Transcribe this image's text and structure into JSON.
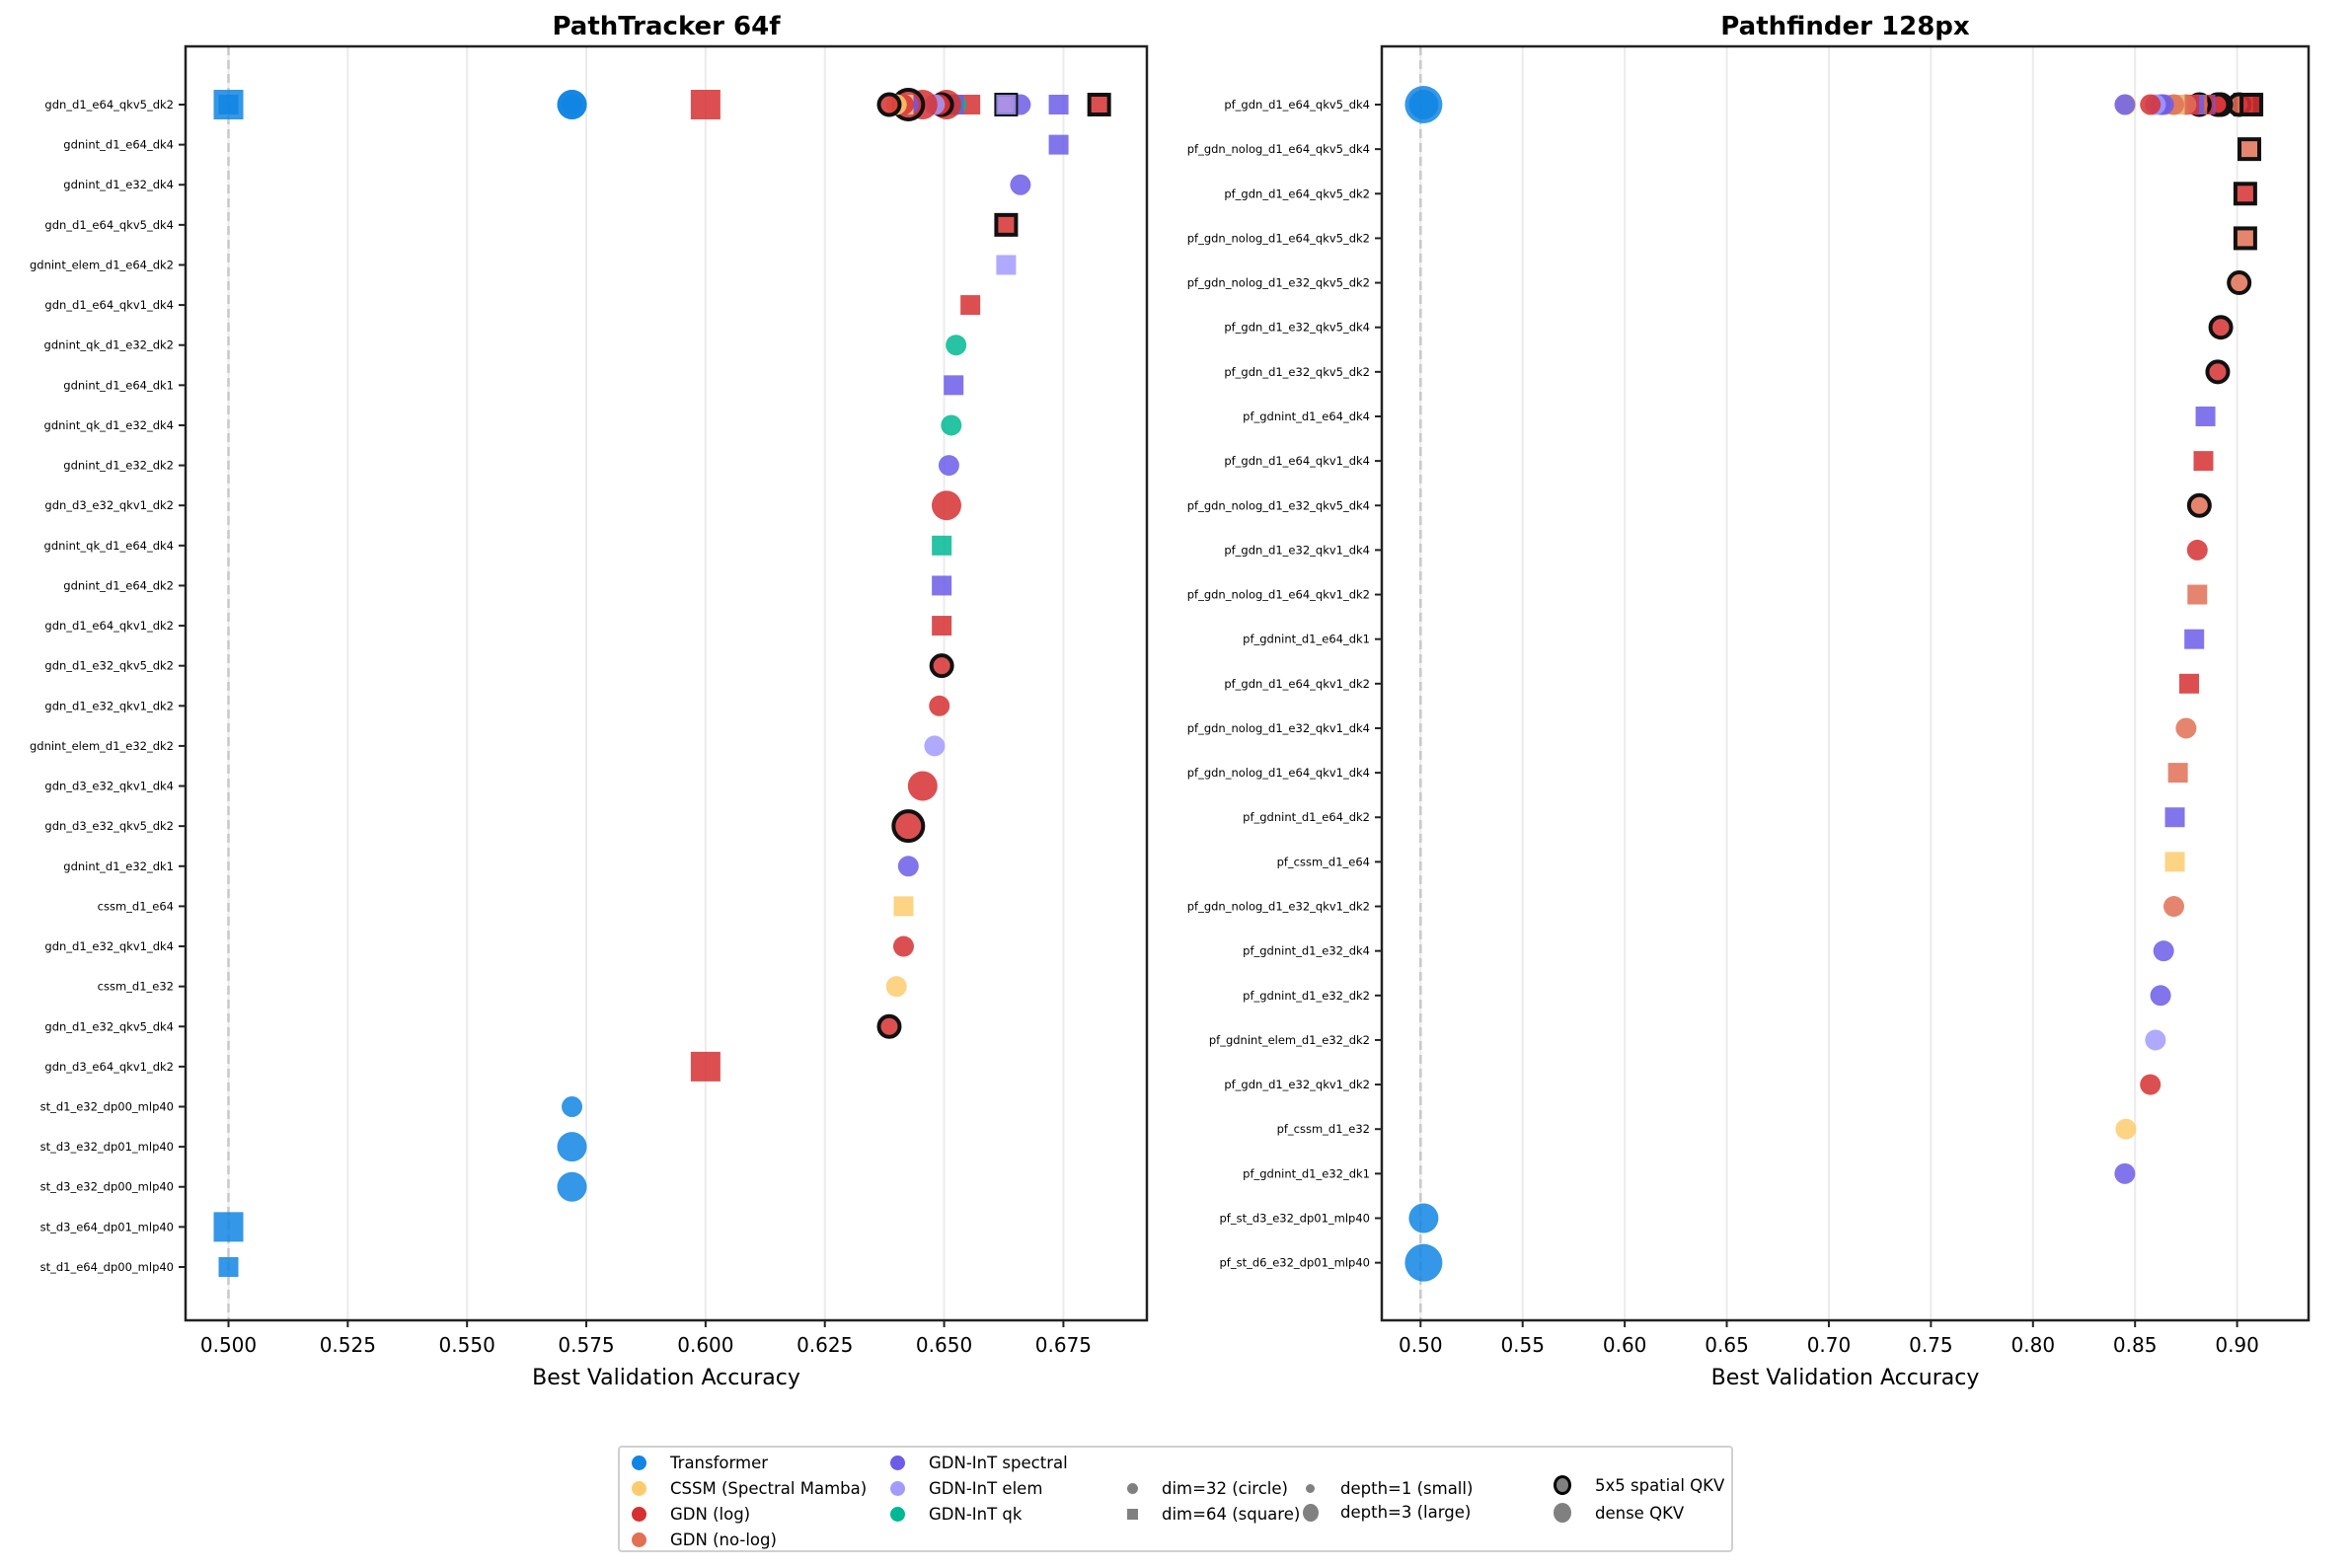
{
  "chart_data": [
    {
      "type": "scatter",
      "title": "PathTracker 64f",
      "xlabel": "Best Validation Accuracy",
      "ylabel": "",
      "xlim": [
        0.491,
        0.6925
      ],
      "xticks": [
        "0.500",
        "0.525",
        "0.550",
        "0.575",
        "0.600",
        "0.625",
        "0.650",
        "0.675"
      ],
      "xtick_values": [
        0.5,
        0.525,
        0.55,
        0.575,
        0.6,
        0.625,
        0.65,
        0.675
      ],
      "reference_line": 0.5,
      "grid": "vertical",
      "points": [
        {
          "label": "gdn_d1_e64_qkv5_dk2",
          "value": 0.6825,
          "family": "GDN (log)",
          "dim": 64,
          "depth": 1,
          "spatial": true
        },
        {
          "label": "gdnint_d1_e64_dk4",
          "value": 0.674,
          "family": "GDN-InT spectral",
          "dim": 64,
          "depth": 1,
          "spatial": false
        },
        {
          "label": "gdnint_d1_e32_dk4",
          "value": 0.666,
          "family": "GDN-InT spectral",
          "dim": 32,
          "depth": 1,
          "spatial": false
        },
        {
          "label": "gdn_d1_e64_qkv5_dk4",
          "value": 0.663,
          "family": "GDN (log)",
          "dim": 64,
          "depth": 1,
          "spatial": true
        },
        {
          "label": "gdnint_elem_d1_e64_dk2",
          "value": 0.663,
          "family": "GDN-InT elem",
          "dim": 64,
          "depth": 1,
          "spatial": false
        },
        {
          "label": "gdn_d1_e64_qkv1_dk4",
          "value": 0.6555,
          "family": "GDN (log)",
          "dim": 64,
          "depth": 1,
          "spatial": false
        },
        {
          "label": "gdnint_qk_d1_e32_dk2",
          "value": 0.6525,
          "family": "GDN-InT qk",
          "dim": 32,
          "depth": 1,
          "spatial": false
        },
        {
          "label": "gdnint_d1_e64_dk1",
          "value": 0.652,
          "family": "GDN-InT spectral",
          "dim": 64,
          "depth": 1,
          "spatial": false
        },
        {
          "label": "gdnint_qk_d1_e32_dk4",
          "value": 0.6515,
          "family": "GDN-InT qk",
          "dim": 32,
          "depth": 1,
          "spatial": false
        },
        {
          "label": "gdnint_d1_e32_dk2",
          "value": 0.651,
          "family": "GDN-InT spectral",
          "dim": 32,
          "depth": 1,
          "spatial": false
        },
        {
          "label": "gdn_d3_e32_qkv1_dk2",
          "value": 0.6505,
          "family": "GDN (log)",
          "dim": 32,
          "depth": 3,
          "spatial": false
        },
        {
          "label": "gdnint_qk_d1_e64_dk4",
          "value": 0.6495,
          "family": "GDN-InT qk",
          "dim": 64,
          "depth": 1,
          "spatial": false
        },
        {
          "label": "gdnint_d1_e64_dk2",
          "value": 0.6495,
          "family": "GDN-InT spectral",
          "dim": 64,
          "depth": 1,
          "spatial": false
        },
        {
          "label": "gdn_d1_e64_qkv1_dk2",
          "value": 0.6495,
          "family": "GDN (log)",
          "dim": 64,
          "depth": 1,
          "spatial": false
        },
        {
          "label": "gdn_d1_e32_qkv5_dk2",
          "value": 0.6495,
          "family": "GDN (log)",
          "dim": 32,
          "depth": 1,
          "spatial": true
        },
        {
          "label": "gdn_d1_e32_qkv1_dk2",
          "value": 0.649,
          "family": "GDN (log)",
          "dim": 32,
          "depth": 1,
          "spatial": false
        },
        {
          "label": "gdnint_elem_d1_e32_dk2",
          "value": 0.648,
          "family": "GDN-InT elem",
          "dim": 32,
          "depth": 1,
          "spatial": false
        },
        {
          "label": "gdn_d3_e32_qkv1_dk4",
          "value": 0.6455,
          "family": "GDN (log)",
          "dim": 32,
          "depth": 3,
          "spatial": false
        },
        {
          "label": "gdn_d3_e32_qkv5_dk2",
          "value": 0.6425,
          "family": "GDN (log)",
          "dim": 32,
          "depth": 3,
          "spatial": true
        },
        {
          "label": "gdnint_d1_e32_dk1",
          "value": 0.6425,
          "family": "GDN-InT spectral",
          "dim": 32,
          "depth": 1,
          "spatial": false
        },
        {
          "label": "cssm_d1_e64",
          "value": 0.6415,
          "family": "CSSM (Spectral Mamba)",
          "dim": 64,
          "depth": 1,
          "spatial": false
        },
        {
          "label": "gdn_d1_e32_qkv1_dk4",
          "value": 0.6415,
          "family": "GDN (log)",
          "dim": 32,
          "depth": 1,
          "spatial": false
        },
        {
          "label": "cssm_d1_e32",
          "value": 0.64,
          "family": "CSSM (Spectral Mamba)",
          "dim": 32,
          "depth": 1,
          "spatial": false
        },
        {
          "label": "gdn_d1_e32_qkv5_dk4",
          "value": 0.6385,
          "family": "GDN (log)",
          "dim": 32,
          "depth": 1,
          "spatial": true
        },
        {
          "label": "gdn_d3_e64_qkv1_dk2",
          "value": 0.6,
          "family": "GDN (log)",
          "dim": 64,
          "depth": 3,
          "spatial": false
        },
        {
          "label": "st_d1_e32_dp00_mlp40",
          "value": 0.572,
          "family": "Transformer",
          "dim": 32,
          "depth": 1,
          "spatial": false
        },
        {
          "label": "st_d3_e32_dp01_mlp40",
          "value": 0.572,
          "family": "Transformer",
          "dim": 32,
          "depth": 3,
          "spatial": false
        },
        {
          "label": "st_d3_e32_dp00_mlp40",
          "value": 0.572,
          "family": "Transformer",
          "dim": 32,
          "depth": 3,
          "spatial": false
        },
        {
          "label": "st_d3_e64_dp01_mlp40",
          "value": 0.5,
          "family": "Transformer",
          "dim": 64,
          "depth": 3,
          "spatial": false
        },
        {
          "label": "st_d1_e64_dp00_mlp40",
          "value": 0.5,
          "family": "Transformer",
          "dim": 64,
          "depth": 1,
          "spatial": false
        }
      ]
    },
    {
      "type": "scatter",
      "title": "Pathfinder 128px",
      "xlabel": "Best Validation Accuracy",
      "ylabel": "",
      "xlim": [
        0.481,
        0.935
      ],
      "xticks": [
        "0.50",
        "0.55",
        "0.60",
        "0.65",
        "0.70",
        "0.75",
        "0.80",
        "0.85",
        "0.90"
      ],
      "xtick_values": [
        0.5,
        0.55,
        0.6,
        0.65,
        0.7,
        0.75,
        0.8,
        0.85,
        0.9
      ],
      "reference_line": 0.5,
      "grid": "vertical",
      "points": [
        {
          "label": "pf_gdn_d1_e64_qkv5_dk4",
          "value": 0.907,
          "family": "GDN (log)",
          "dim": 64,
          "depth": 1,
          "spatial": true
        },
        {
          "label": "pf_gdn_nolog_d1_e64_qkv5_dk4",
          "value": 0.906,
          "family": "GDN (no-log)",
          "dim": 64,
          "depth": 1,
          "spatial": true
        },
        {
          "label": "pf_gdn_d1_e64_qkv5_dk2",
          "value": 0.904,
          "family": "GDN (log)",
          "dim": 64,
          "depth": 1,
          "spatial": true
        },
        {
          "label": "pf_gdn_nolog_d1_e64_qkv5_dk2",
          "value": 0.904,
          "family": "GDN (no-log)",
          "dim": 64,
          "depth": 1,
          "spatial": true
        },
        {
          "label": "pf_gdn_nolog_d1_e32_qkv5_dk2",
          "value": 0.901,
          "family": "GDN (no-log)",
          "dim": 32,
          "depth": 1,
          "spatial": true
        },
        {
          "label": "pf_gdn_d1_e32_qkv5_dk4",
          "value": 0.892,
          "family": "GDN (log)",
          "dim": 32,
          "depth": 1,
          "spatial": true
        },
        {
          "label": "pf_gdn_d1_e32_qkv5_dk2",
          "value": 0.8905,
          "family": "GDN (log)",
          "dim": 32,
          "depth": 1,
          "spatial": true
        },
        {
          "label": "pf_gdnint_d1_e64_dk4",
          "value": 0.8845,
          "family": "GDN-InT spectral",
          "dim": 64,
          "depth": 1,
          "spatial": false
        },
        {
          "label": "pf_gdn_d1_e64_qkv1_dk4",
          "value": 0.8835,
          "family": "GDN (log)",
          "dim": 64,
          "depth": 1,
          "spatial": false
        },
        {
          "label": "pf_gdn_nolog_d1_e32_qkv5_dk4",
          "value": 0.8815,
          "family": "GDN (no-log)",
          "dim": 32,
          "depth": 1,
          "spatial": true
        },
        {
          "label": "pf_gdn_d1_e32_qkv1_dk4",
          "value": 0.8805,
          "family": "GDN (log)",
          "dim": 32,
          "depth": 1,
          "spatial": false
        },
        {
          "label": "pf_gdn_nolog_d1_e64_qkv1_dk2",
          "value": 0.8805,
          "family": "GDN (no-log)",
          "dim": 64,
          "depth": 1,
          "spatial": false
        },
        {
          "label": "pf_gdnint_d1_e64_dk1",
          "value": 0.879,
          "family": "GDN-InT spectral",
          "dim": 64,
          "depth": 1,
          "spatial": false
        },
        {
          "label": "pf_gdn_d1_e64_qkv1_dk2",
          "value": 0.8765,
          "family": "GDN (log)",
          "dim": 64,
          "depth": 1,
          "spatial": false
        },
        {
          "label": "pf_gdn_nolog_d1_e32_qkv1_dk4",
          "value": 0.875,
          "family": "GDN (no-log)",
          "dim": 32,
          "depth": 1,
          "spatial": false
        },
        {
          "label": "pf_gdn_nolog_d1_e64_qkv1_dk4",
          "value": 0.871,
          "family": "GDN (no-log)",
          "dim": 64,
          "depth": 1,
          "spatial": false
        },
        {
          "label": "pf_gdnint_d1_e64_dk2",
          "value": 0.8695,
          "family": "GDN-InT spectral",
          "dim": 64,
          "depth": 1,
          "spatial": false
        },
        {
          "label": "pf_cssm_d1_e64",
          "value": 0.8695,
          "family": "CSSM (Spectral Mamba)",
          "dim": 64,
          "depth": 1,
          "spatial": false
        },
        {
          "label": "pf_gdn_nolog_d1_e32_qkv1_dk2",
          "value": 0.869,
          "family": "GDN (no-log)",
          "dim": 32,
          "depth": 1,
          "spatial": false
        },
        {
          "label": "pf_gdnint_d1_e32_dk4",
          "value": 0.864,
          "family": "GDN-InT spectral",
          "dim": 32,
          "depth": 1,
          "spatial": false
        },
        {
          "label": "pf_gdnint_d1_e32_dk2",
          "value": 0.8625,
          "family": "GDN-InT spectral",
          "dim": 32,
          "depth": 1,
          "spatial": false
        },
        {
          "label": "pf_gdnint_elem_d1_e32_dk2",
          "value": 0.86,
          "family": "GDN-InT elem",
          "dim": 32,
          "depth": 1,
          "spatial": false
        },
        {
          "label": "pf_gdn_d1_e32_qkv1_dk2",
          "value": 0.8575,
          "family": "GDN (log)",
          "dim": 32,
          "depth": 1,
          "spatial": false
        },
        {
          "label": "pf_cssm_d1_e32",
          "value": 0.8455,
          "family": "CSSM (Spectral Mamba)",
          "dim": 32,
          "depth": 1,
          "spatial": false
        },
        {
          "label": "pf_gdnint_d1_e32_dk1",
          "value": 0.845,
          "family": "GDN-InT spectral",
          "dim": 32,
          "depth": 1,
          "spatial": false
        },
        {
          "label": "pf_st_d3_e32_dp01_mlp40",
          "value": 0.5015,
          "family": "Transformer",
          "dim": 32,
          "depth": 3,
          "spatial": false
        },
        {
          "label": "pf_st_d6_e32_dp01_mlp40",
          "value": 0.5015,
          "family": "Transformer",
          "dim": 32,
          "depth": 6,
          "spatial": false
        }
      ]
    }
  ],
  "legend": {
    "families": [
      {
        "name": "Transformer",
        "color": "#1185e3"
      },
      {
        "name": "CSSM (Spectral Mamba)",
        "color": "#fdcb6e"
      },
      {
        "name": "GDN (log)",
        "color": "#d63031"
      },
      {
        "name": "GDN (no-log)",
        "color": "#e17055"
      },
      {
        "name": "GDN-InT spectral",
        "color": "#6c5ce7"
      },
      {
        "name": "GDN-InT elem",
        "color": "#a29bfe"
      },
      {
        "name": "GDN-InT qk",
        "color": "#00b894"
      }
    ],
    "shapes": [
      {
        "name": "dim=32 (circle)"
      },
      {
        "name": "dim=64 (square)"
      }
    ],
    "sizes": [
      {
        "name": "depth=1 (small)"
      },
      {
        "name": "depth=3 (large)"
      }
    ],
    "qkv": [
      {
        "name": "5x5 spatial QKV"
      },
      {
        "name": "dense QKV"
      }
    ]
  }
}
